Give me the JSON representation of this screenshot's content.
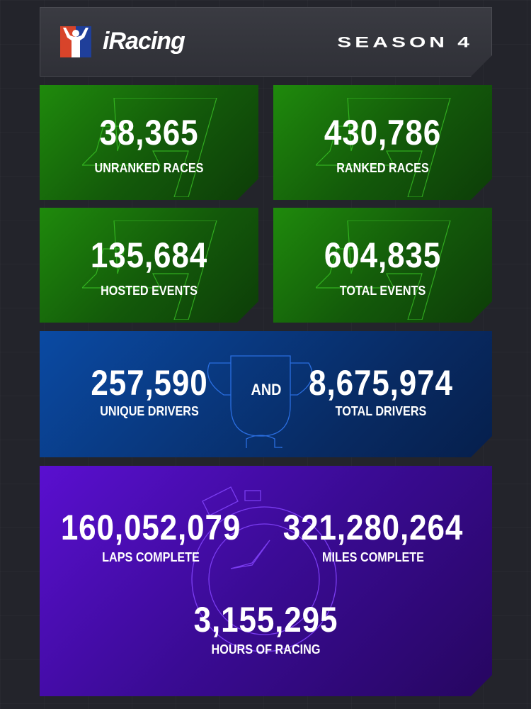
{
  "header": {
    "brand": "iRacing",
    "season": "SEASON 4"
  },
  "colors": {
    "background": "#23242b",
    "green": "#1f8a0c",
    "blue": "#0a4aa3",
    "purple": "#5a0fd0",
    "logo_red": "#d8442a",
    "logo_blue": "#1f3f9a"
  },
  "stats": {
    "unranked": {
      "value": "38,365",
      "label": "UNRANKED  RACES"
    },
    "ranked": {
      "value": "430,786",
      "label": "RANKED RACES"
    },
    "hosted": {
      "value": "135,684",
      "label": "HOSTED EVENTS"
    },
    "total_events": {
      "value": "604,835",
      "label": "TOTAL EVENTS"
    },
    "unique_drivers": {
      "value": "257,590",
      "label": "UNIQUE DRIVERS"
    },
    "and": "AND",
    "total_drivers": {
      "value": "8,675,974",
      "label": "TOTAL DRIVERS"
    },
    "laps": {
      "value": "160,052,079",
      "label": "LAPS COMPLETE"
    },
    "miles": {
      "value": "321,280,264",
      "label": "MILES COMPLETE"
    },
    "hours": {
      "value": "3,155,295",
      "label": "HOURS OF RACING"
    }
  }
}
